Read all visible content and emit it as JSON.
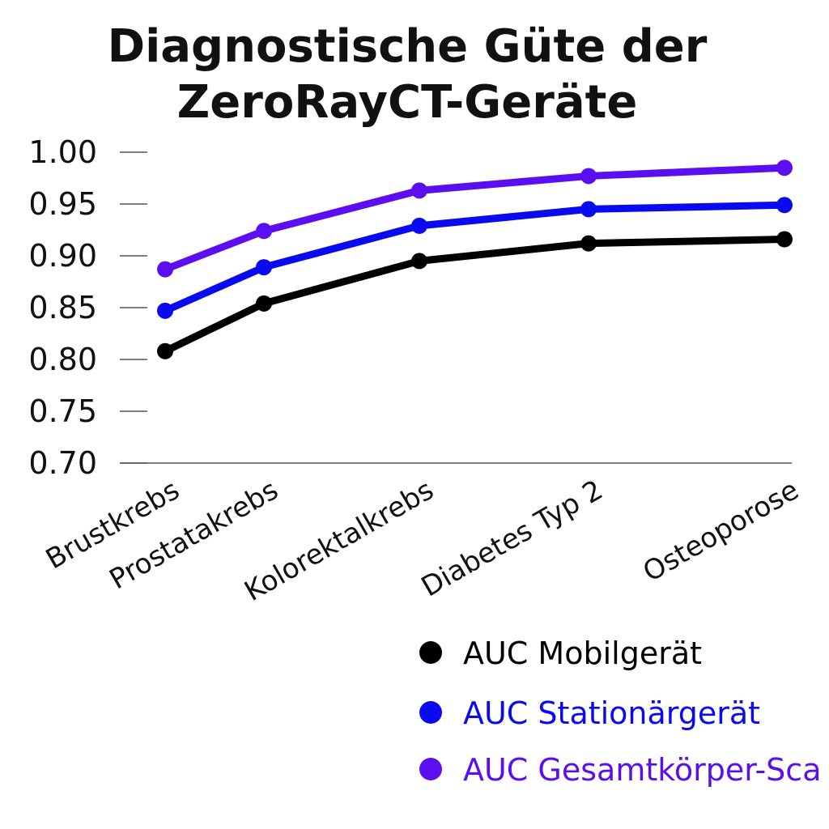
{
  "chart_data": {
    "type": "line",
    "title": [
      "Diagnostische Güte der",
      "ZeroRayCT-Geräte"
    ],
    "categories": [
      "Brustkrebs",
      "Prostatakrebs",
      "Kolorektalkrebs",
      "Diabetes Typ 2",
      "Osteoporose"
    ],
    "y_ticks": [
      "0.70",
      "0.75",
      "0.80",
      "0.85",
      "0.90",
      "0.95",
      "1.00"
    ],
    "ylim": [
      0.7,
      1.0
    ],
    "grid": false,
    "legend_position": "bottom-right",
    "series": [
      {
        "name": "AUC Mobilgerät",
        "color": "#000000",
        "values": [
          0.808,
          0.854,
          0.895,
          0.912,
          0.916
        ]
      },
      {
        "name": "AUC Stationärgerät",
        "color": "#0a0af0",
        "values": [
          0.847,
          0.889,
          0.929,
          0.945,
          0.949
        ]
      },
      {
        "name": "AUC Gesamtkörper-Sca",
        "color": "#5b0ff0",
        "values": [
          0.887,
          0.924,
          0.963,
          0.977,
          0.985
        ]
      }
    ]
  }
}
